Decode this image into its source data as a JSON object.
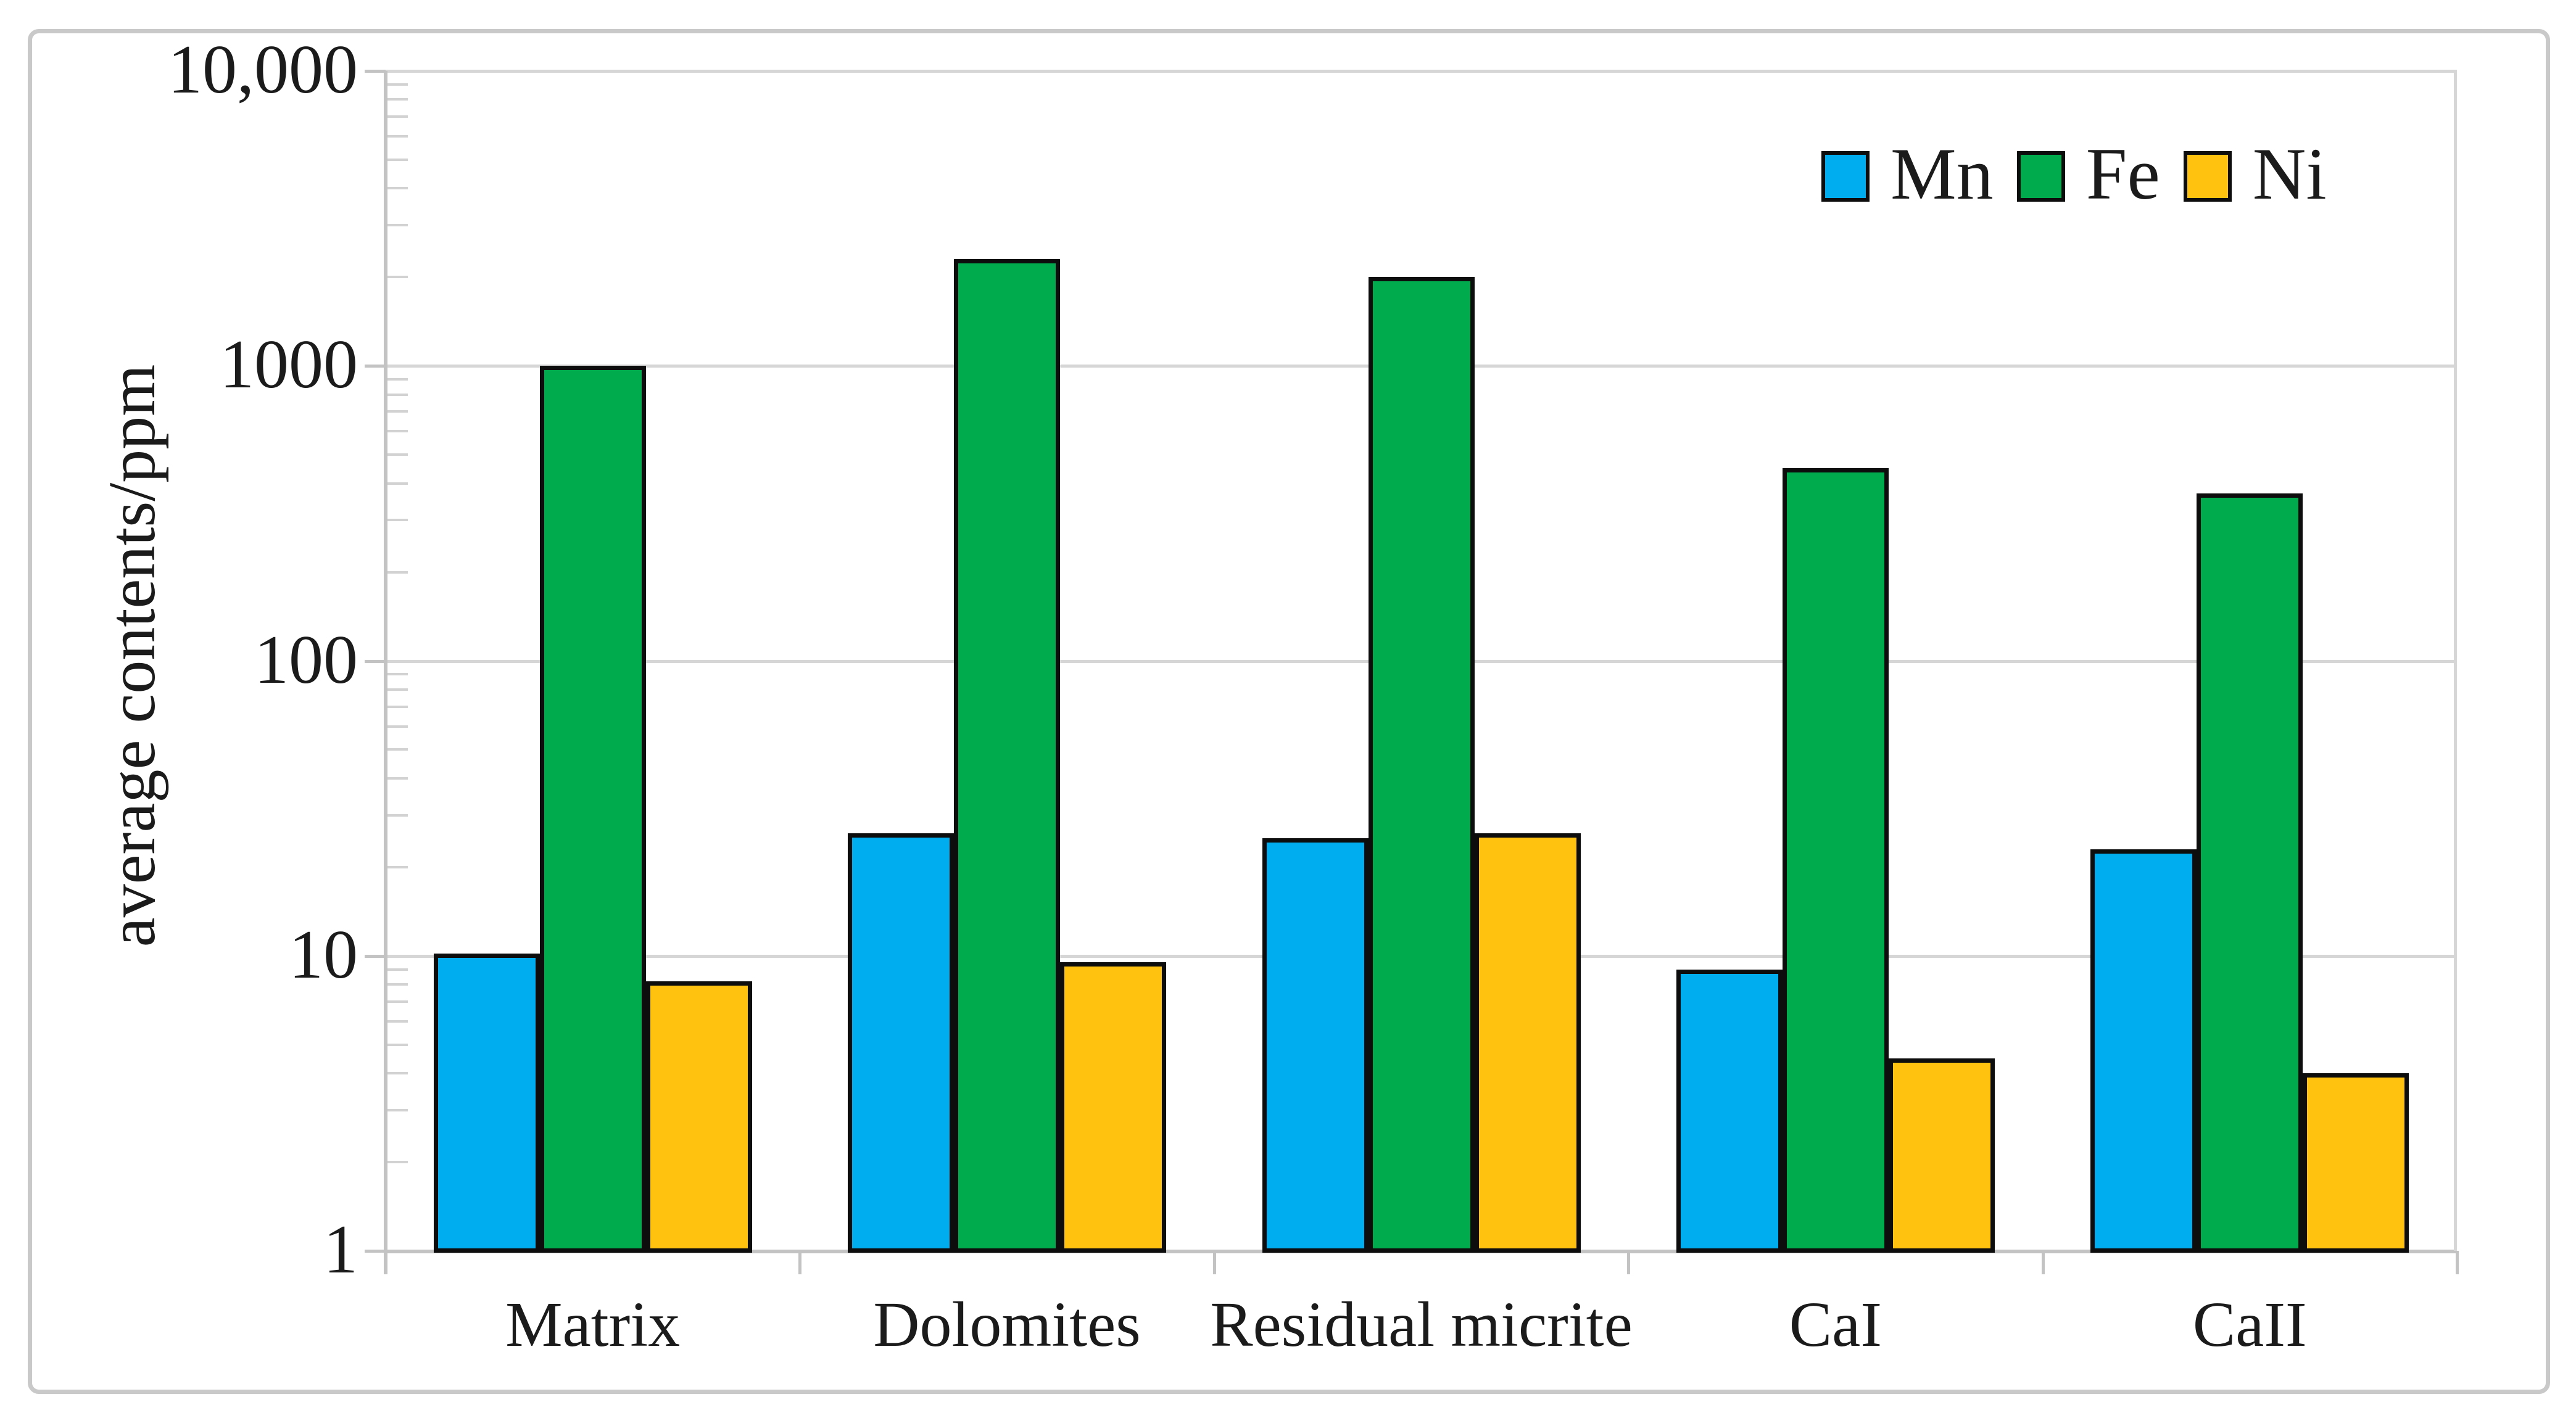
{
  "figure": {
    "background": "#ffffff",
    "border_color": "#c9c9c9"
  },
  "chart_data": {
    "type": "bar",
    "title": "",
    "xlabel": "",
    "ylabel": "average contents/ppm",
    "categories": [
      "Matrix",
      "Dolomites",
      "Residual micrite",
      "CaI",
      "CaII"
    ],
    "series": [
      {
        "name": "Mn",
        "color": "#00AEEF",
        "values": [
          10.2,
          26,
          25,
          9,
          23
        ]
      },
      {
        "name": "Fe",
        "color": "#00AB4E",
        "values": [
          1000,
          2300,
          2000,
          450,
          370
        ]
      },
      {
        "name": "Ni",
        "color": "#FFC20E",
        "values": [
          8.2,
          9.5,
          26,
          4.5,
          4
        ]
      }
    ],
    "y_axis": {
      "scale": "log",
      "min": 1,
      "max": 10000,
      "ticks": [
        {
          "label": "10,000",
          "value": 10000
        },
        {
          "label": "1000",
          "value": 1000
        },
        {
          "label": "100",
          "value": 100
        },
        {
          "label": "10",
          "value": 10
        },
        {
          "label": "1",
          "value": 1
        }
      ]
    },
    "grid": true,
    "legend_position": "top-right",
    "bar_outline_color": "#000000",
    "gridline_color": "#d6d6d6",
    "axis_color": "#c3c3c3"
  }
}
